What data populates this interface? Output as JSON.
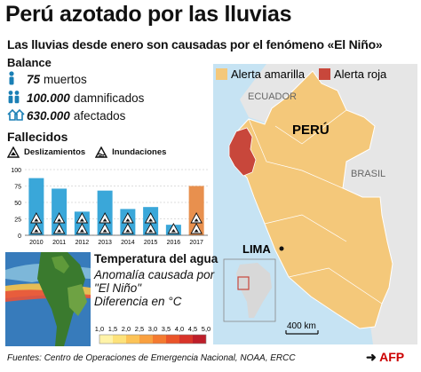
{
  "title": "Perú azotado por las lluvias",
  "subtitle": "Las lluvias desde enero son causadas por el fenómeno «El Niño»",
  "balance": {
    "heading": "Balance",
    "stats": [
      {
        "icon": "person-icon",
        "value": "75",
        "label": "muertos"
      },
      {
        "icon": "people-icon",
        "value": "100.000",
        "label": "damnificados"
      },
      {
        "icon": "houses-icon",
        "value": "630.000",
        "label": "afectados"
      }
    ]
  },
  "fallecidos": {
    "heading": "Fallecidos",
    "legend": [
      "Deslizamientos",
      "Inundaciones"
    ]
  },
  "chart_data": {
    "type": "bar",
    "categories": [
      "2010",
      "2011",
      "2012",
      "2013",
      "2014",
      "2015",
      "2016",
      "2017"
    ],
    "values": [
      87,
      71,
      36,
      68,
      40,
      43,
      16,
      75
    ],
    "ylim": [
      0,
      100
    ],
    "yticks": [
      0,
      25,
      50,
      75,
      100
    ],
    "grid": true,
    "colors": {
      "normal": "#3aa7d9",
      "highlight": "#e8904e"
    },
    "highlight_category": "2017"
  },
  "map": {
    "legend": [
      {
        "label": "Alerta amarilla",
        "color": "#f4c87a"
      },
      {
        "label": "Alerta roja",
        "color": "#c8473b"
      }
    ],
    "country_labels": {
      "ecuador": "ECUADOR",
      "peru": "PERÚ",
      "brasil": "BRASIL"
    },
    "city": "LIMA",
    "scale": "400 km",
    "colors": {
      "sea": "#c6e3f3",
      "land": "#e6e6e6",
      "yellow": "#f4c87a",
      "red": "#c8473b"
    }
  },
  "temperature": {
    "title": "Temperatura del agua",
    "lines": [
      "Anomalía causada por",
      "\"El Niño\"",
      "Diferencia en °C"
    ],
    "scale_ticks": [
      "1,0",
      "1,5",
      "2,0",
      "2,5",
      "3,0",
      "3,5",
      "4,0",
      "4,5",
      "5,0"
    ],
    "scale_colors": [
      "#fff3a8",
      "#fde27a",
      "#fcc357",
      "#f9a03f",
      "#f47a30",
      "#ea5429",
      "#d8342a",
      "#bd1e2a"
    ]
  },
  "source": "Fuentes: Centro de Operaciones de Emergencia Nacional, NOAA, ERCC",
  "credit": {
    "arrow": "➜",
    "brand": "AFP"
  }
}
